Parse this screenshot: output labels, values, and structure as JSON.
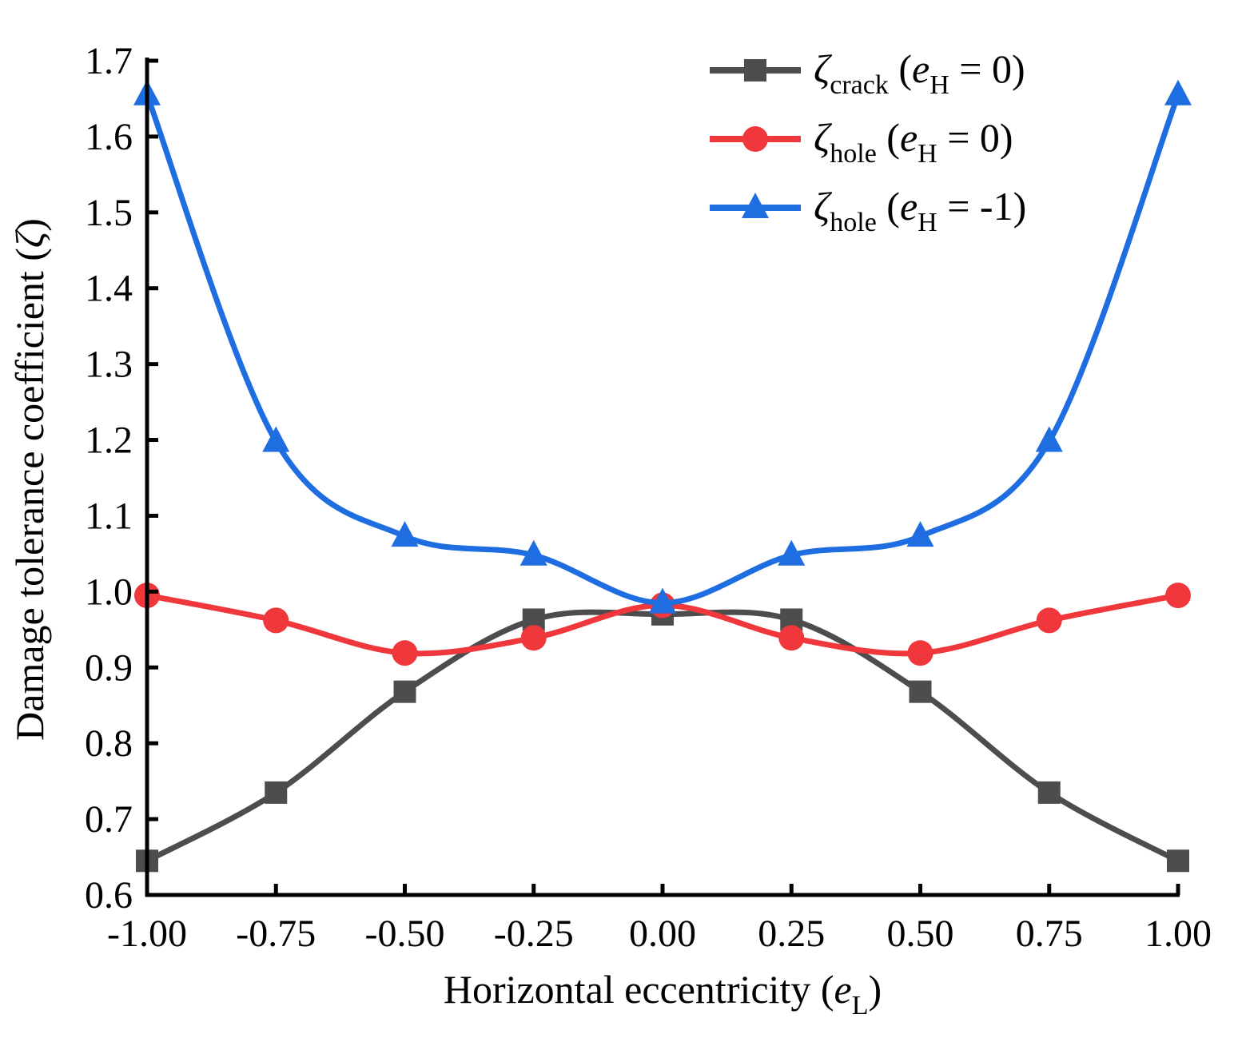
{
  "chart_data": {
    "type": "line",
    "title": "",
    "x": [
      -1.0,
      -0.75,
      -0.5,
      -0.25,
      0.0,
      0.25,
      0.5,
      0.75,
      1.0
    ],
    "xlim": [
      -1.0,
      1.0
    ],
    "ylim": [
      0.6,
      1.7
    ],
    "x_tick_labels": [
      "-1.00",
      "-0.75",
      "-0.50",
      "-0.25",
      "0.00",
      "0.25",
      "0.50",
      "0.75",
      "1.00"
    ],
    "y_tick_labels": [
      "0.6",
      "0.7",
      "0.8",
      "0.9",
      "1.0",
      "1.1",
      "1.2",
      "1.3",
      "1.4",
      "1.5",
      "1.6",
      "1.7"
    ],
    "xlabel": {
      "main": "Horizontal eccentricity (",
      "var": "e",
      "sub": "L",
      "close": ")"
    },
    "ylabel": {
      "main": "Damage tolerance coefficient (",
      "var": "ζ",
      "close": ")"
    },
    "grid": false,
    "legend_position": "top-right",
    "series": [
      {
        "name": "ζcrack (eH = 0)",
        "legend": {
          "sym": "ζ",
          "sub": "crack",
          "open": " (",
          "var": "e",
          "vsub": "H",
          "rest": " = 0)"
        },
        "color": "#4d4d4d",
        "marker": "square",
        "values": [
          0.645,
          0.735,
          0.868,
          0.963,
          0.97,
          0.963,
          0.868,
          0.735,
          0.645
        ]
      },
      {
        "name": "ζhole (eH = 0)",
        "legend": {
          "sym": "ζ",
          "sub": "hole",
          "open": "  (",
          "var": "e",
          "vsub": "H",
          "rest": " = 0)"
        },
        "color": "#f0373c",
        "marker": "circle",
        "values": [
          0.995,
          0.962,
          0.919,
          0.939,
          0.982,
          0.939,
          0.919,
          0.962,
          0.995
        ]
      },
      {
        "name": "ζhole (eH = -1)",
        "legend": {
          "sym": "ζ",
          "sub": "hole",
          "open": " (",
          "var": "e",
          "vsub": "H",
          "rest": " = -1)"
        },
        "color": "#1e6ee1",
        "marker": "triangle",
        "values": [
          1.655,
          1.198,
          1.073,
          1.048,
          0.985,
          1.048,
          1.073,
          1.198,
          1.655
        ]
      }
    ]
  }
}
